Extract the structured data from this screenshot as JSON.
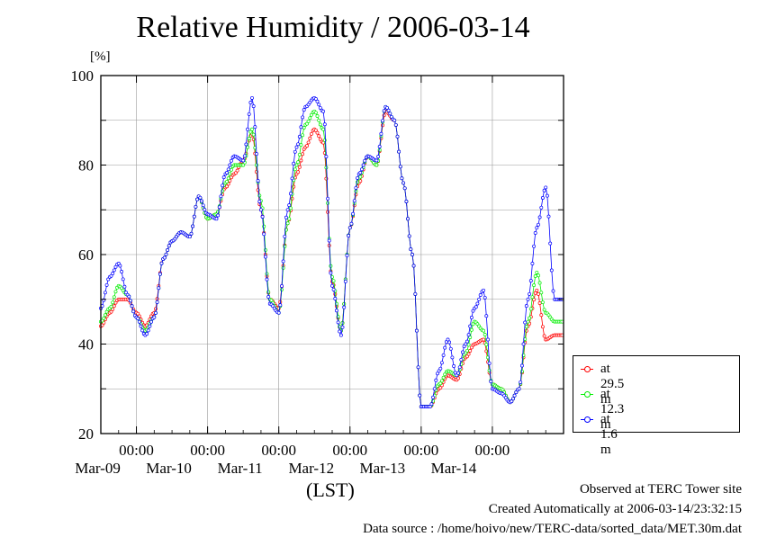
{
  "page": {
    "title": "Relative Humidity / 2006-03-14",
    "footer": {
      "line1": "Observed at TERC Tower site",
      "line2": "Created Automatically at 2006-03-14/23:32:15",
      "line3": "Data source : /home/hoivo/new/TERC-data/sorted_data/MET.30m.dat"
    }
  },
  "chart_data": {
    "type": "line",
    "title": "Relative Humidity / 2006-03-14",
    "ylabel": "[%]",
    "xlabel": "(LST)",
    "ylim": [
      20,
      100
    ],
    "yticks": [
      20,
      40,
      60,
      80,
      100
    ],
    "xlim": [
      "2006-03-08 12:00",
      "2006-03-15 00:00"
    ],
    "xticks": [
      {
        "time": "2006-03-09 00:00",
        "label": "00:00",
        "date": "Mar-09"
      },
      {
        "time": "2006-03-10 00:00",
        "label": "00:00",
        "date": "Mar-10"
      },
      {
        "time": "2006-03-11 00:00",
        "label": "00:00",
        "date": "Mar-11"
      },
      {
        "time": "2006-03-12 00:00",
        "label": "00:00",
        "date": "Mar-12"
      },
      {
        "time": "2006-03-13 00:00",
        "label": "00:00",
        "date": "Mar-13"
      },
      {
        "time": "2006-03-14 00:00",
        "label": "00:00",
        "date": "Mar-14"
      }
    ],
    "grid": true,
    "legend_position": "right",
    "x": [
      "03-08 12:00",
      "03-08 15:00",
      "03-08 18:00",
      "03-08 21:00",
      "03-09 00:00",
      "03-09 03:00",
      "03-09 06:00",
      "03-09 09:00",
      "03-09 12:00",
      "03-09 15:00",
      "03-09 18:00",
      "03-09 21:00",
      "03-10 00:00",
      "03-10 03:00",
      "03-10 06:00",
      "03-10 09:00",
      "03-10 12:00",
      "03-10 15:00",
      "03-10 18:00",
      "03-10 21:00",
      "03-11 00:00",
      "03-11 03:00",
      "03-11 06:00",
      "03-11 09:00",
      "03-11 12:00",
      "03-11 15:00",
      "03-11 18:00",
      "03-11 21:00",
      "03-12 00:00",
      "03-12 03:00",
      "03-12 06:00",
      "03-12 09:00",
      "03-12 12:00",
      "03-12 15:00",
      "03-12 18:00",
      "03-12 21:00",
      "03-13 00:00",
      "03-13 03:00",
      "03-13 06:00",
      "03-13 09:00",
      "03-13 12:00",
      "03-13 15:00",
      "03-13 18:00",
      "03-13 21:00",
      "03-14 00:00",
      "03-14 03:00",
      "03-14 06:00",
      "03-14 09:00",
      "03-14 12:00",
      "03-14 15:00",
      "03-14 18:00",
      "03-14 21:00",
      "03-14 23:30"
    ],
    "series": [
      {
        "name": "at 29.5 m",
        "color": "#ff0000",
        "values": [
          44,
          47,
          50,
          50,
          47,
          44,
          47,
          59,
          63,
          65,
          64,
          73,
          68,
          69,
          75,
          78,
          81,
          87,
          70,
          50,
          48,
          67,
          78,
          84,
          88,
          85,
          54,
          43,
          66,
          76,
          82,
          80,
          92,
          90,
          76,
          60,
          26,
          26,
          30,
          33,
          32,
          37,
          40,
          41,
          31,
          30,
          27,
          30,
          44,
          52,
          41,
          42,
          42
        ]
      },
      {
        "name": "at 12.3 m",
        "color": "#00ee00",
        "values": [
          45,
          48,
          53,
          51,
          46,
          43,
          46,
          59,
          63,
          65,
          64,
          73,
          68,
          69,
          76,
          80,
          80,
          88,
          72,
          50,
          47,
          67,
          80,
          89,
          92,
          88,
          55,
          43,
          66,
          77,
          82,
          80,
          93,
          90,
          76,
          60,
          26,
          26,
          31,
          34,
          33,
          38,
          45,
          43,
          31,
          30,
          27,
          30,
          45,
          56,
          47,
          45,
          45
        ]
      },
      {
        "name": "at 1.6 m",
        "color": "#0000ff",
        "values": [
          48,
          55,
          58,
          51,
          46,
          42,
          46,
          59,
          63,
          65,
          64,
          73,
          69,
          68,
          78,
          82,
          81,
          95,
          70,
          49,
          47,
          70,
          84,
          93,
          95,
          92,
          53,
          42,
          66,
          78,
          82,
          81,
          93,
          90,
          76,
          60,
          26,
          26,
          34,
          41,
          33,
          40,
          48,
          52,
          30,
          29,
          27,
          30,
          50,
          66,
          75,
          50,
          50
        ]
      }
    ]
  }
}
